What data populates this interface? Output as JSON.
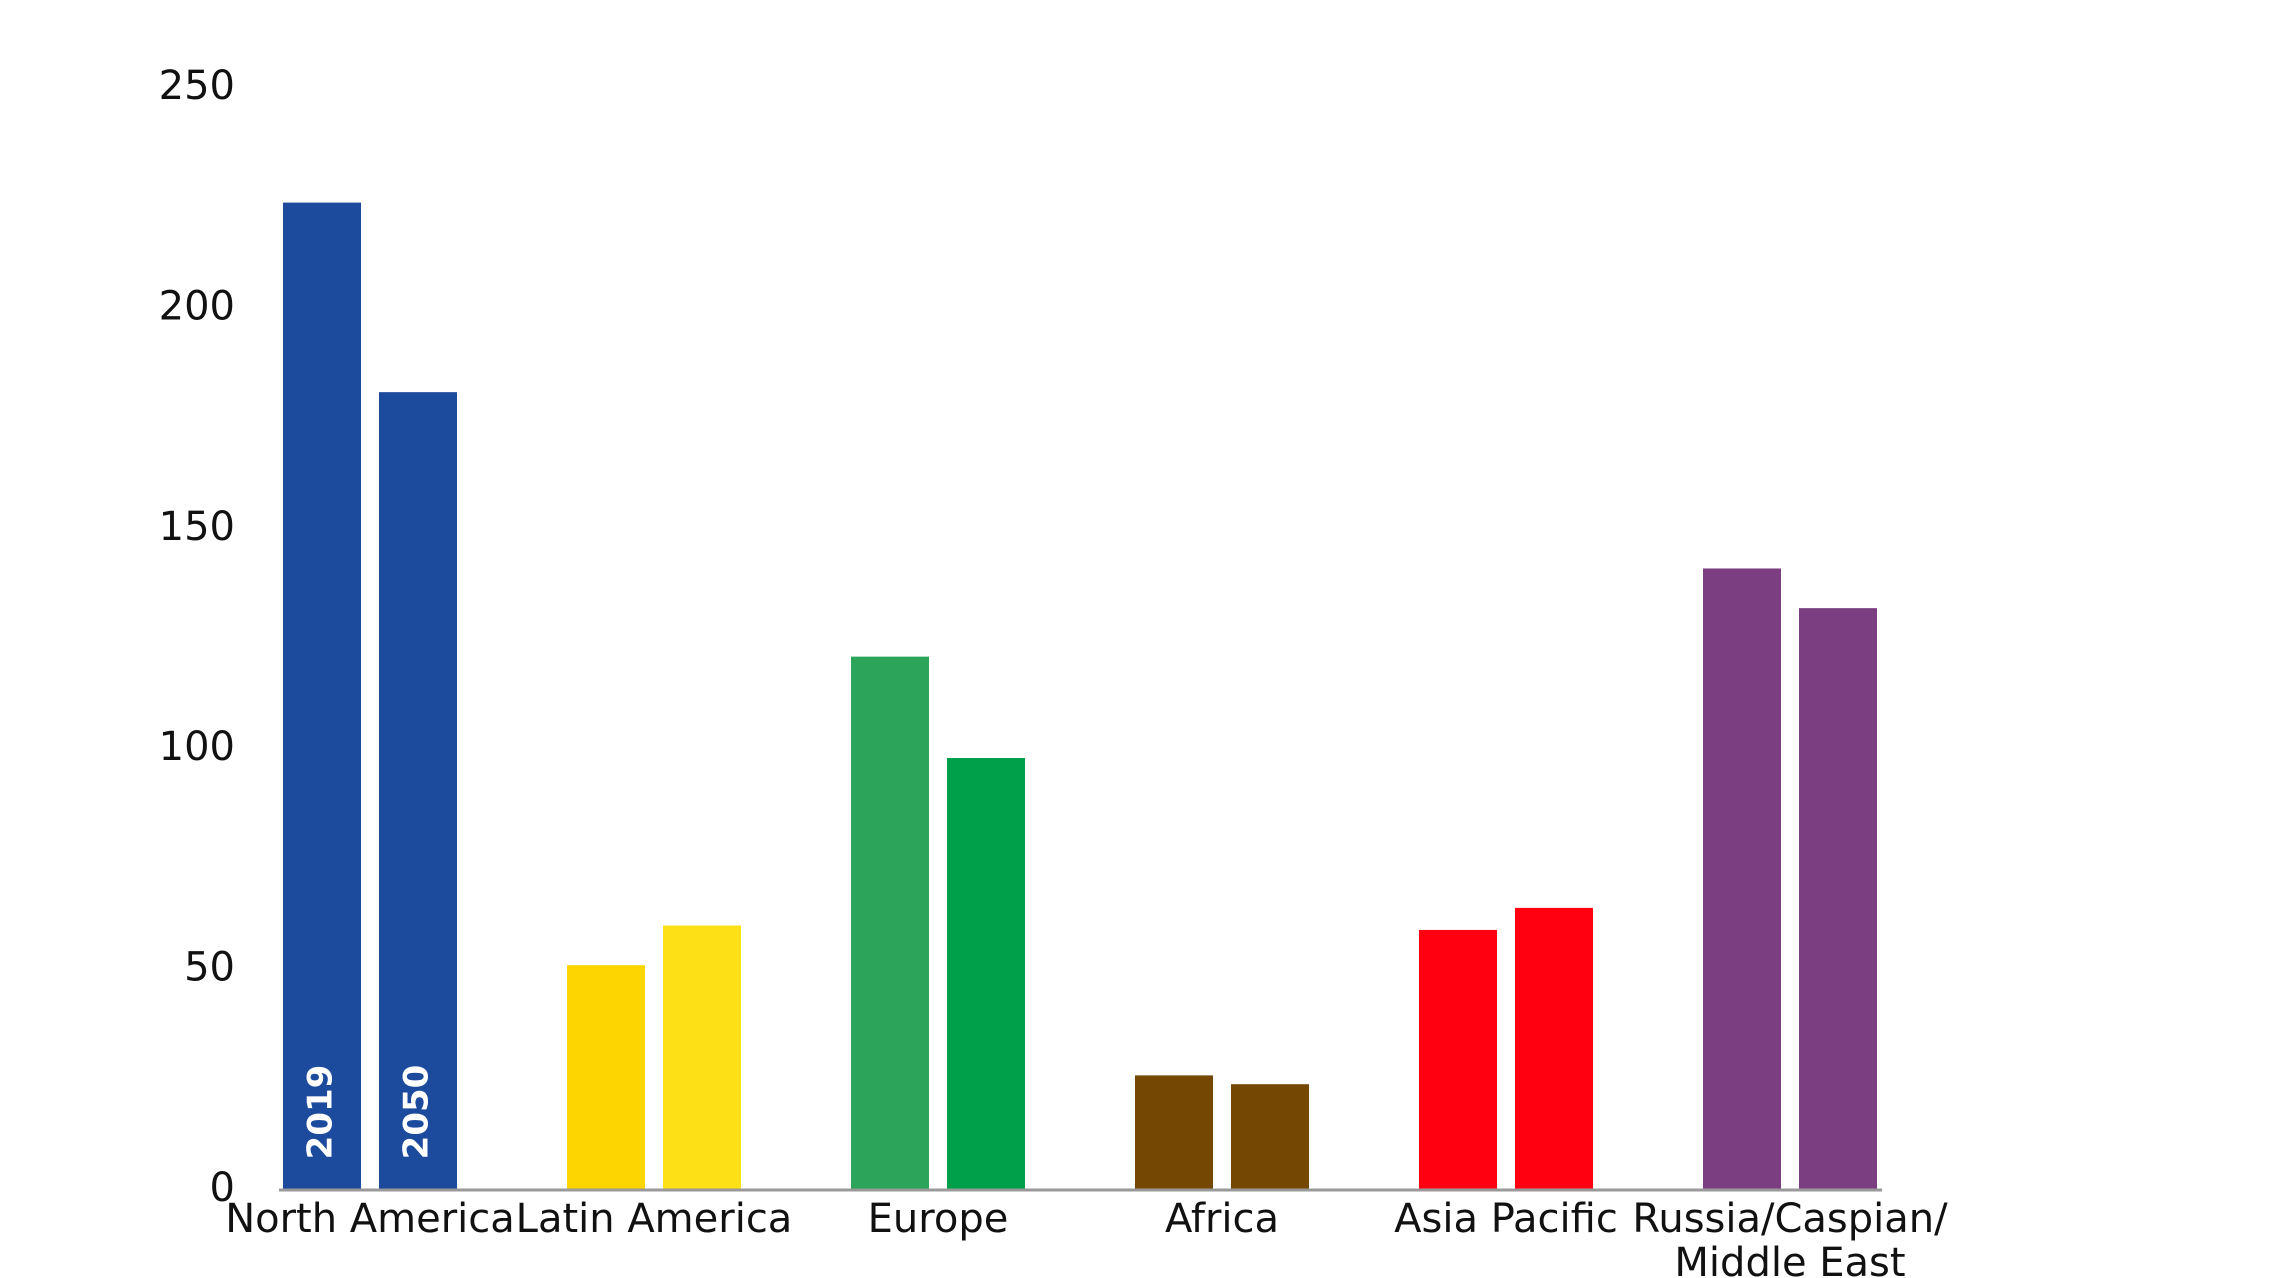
{
  "chart_data": {
    "type": "bar",
    "categories": [
      "North America",
      "Latin America",
      "Europe",
      "Africa",
      "Asia Pacific",
      [
        "Russia/Caspian/",
        "Middle East"
      ]
    ],
    "series": [
      {
        "name": "2019",
        "values": [
          224,
          51,
          121,
          26,
          59,
          141
        ],
        "colors": [
          "#1c4a9c",
          "#fdd500",
          "#2ca55a",
          "#744703",
          "#ff0011",
          "#7b3f81"
        ]
      },
      {
        "name": "2050",
        "values": [
          181,
          60,
          98,
          24,
          64,
          132
        ],
        "colors": [
          "#1c4a9c",
          "#fde016",
          "#00a04a",
          "#744703",
          "#ff0011",
          "#7b3f81"
        ]
      }
    ],
    "ylim": [
      0,
      250
    ],
    "yticks": [
      0,
      50,
      100,
      150,
      200,
      250
    ],
    "grid": false
  }
}
